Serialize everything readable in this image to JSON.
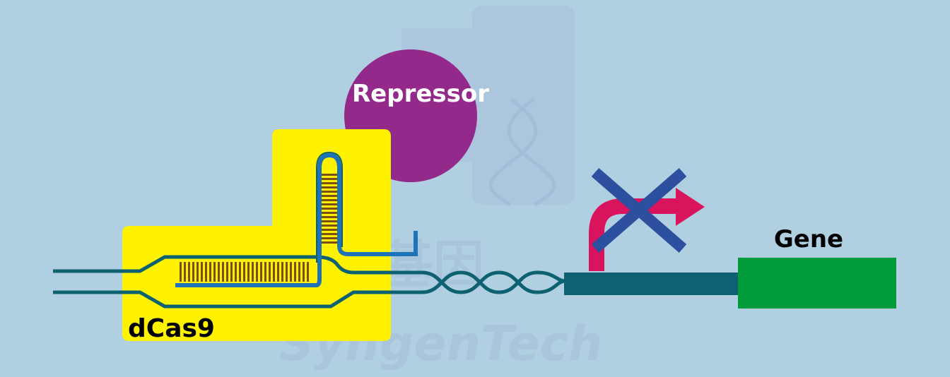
{
  "labels": {
    "repressor": "Repressor",
    "dcas9": "dCas9",
    "gene": "Gene"
  },
  "watermark": {
    "chinese": "赛业基因",
    "brand": "SyngenTech"
  },
  "colors": {
    "background": "#b0d0e2",
    "dcas9": "#fff200",
    "repressor": "#93298b",
    "dna": "#0d6171",
    "guide_rna": "#1e73b8",
    "base_pairs": "#7a4d14",
    "gene": "#009b3a",
    "promoter_arrow": "#d9145c",
    "blocked_cross": "#2d4f9f"
  }
}
